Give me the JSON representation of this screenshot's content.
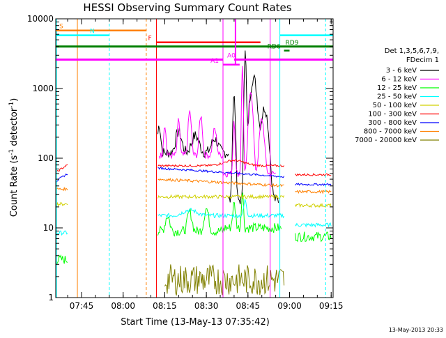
{
  "chart_data": {
    "type": "line",
    "title": "HESSI Observing Summary Count Rates",
    "xlabel": "Start Time (13-May-13 07:35:42)",
    "ylabel_main": "Count Rate (s",
    "ylabel_sup": "-1",
    "ylabel_tail": " detector",
    "ylabel_end": ")",
    "footer_date": "13-May-2013 20:33",
    "y_scale": "log",
    "ylim": [
      1,
      10000
    ],
    "xlim": [
      "07:35:42",
      "09:15:42"
    ],
    "x_ticks": [
      "07:45",
      "08:00",
      "08:15",
      "08:30",
      "08:45",
      "09:00",
      "09:15"
    ],
    "y_ticks": [
      "1",
      "10",
      "100",
      "1000",
      "10000"
    ],
    "legend_header": [
      "Det 1,3,5,6,7,9,",
      "FDecim 1"
    ],
    "legend_placement": "right",
    "series": [
      {
        "name": "3 - 6 keV",
        "color": "#000000"
      },
      {
        "name": "6 - 12 keV",
        "color": "#ff00ff"
      },
      {
        "name": "12 - 25 keV",
        "color": "#00ff00"
      },
      {
        "name": "25 - 50 keV",
        "color": "#00ffff"
      },
      {
        "name": "50 - 100 keV",
        "color": "#d0d000"
      },
      {
        "name": "100 - 300 keV",
        "color": "#ff0000"
      },
      {
        "name": "300 - 800 keV",
        "color": "#0000ff"
      },
      {
        "name": "800 - 7000 keV",
        "color": "#ff8000"
      },
      {
        "name": "7000 - 20000 keV",
        "color": "#808000"
      }
    ],
    "flags": [
      {
        "label": "S",
        "color": "#ff8000"
      },
      {
        "label": "N",
        "color": "#00ffff"
      },
      {
        "label": "F",
        "color": "#ff0000"
      },
      {
        "label": "RD9",
        "color": "#008000"
      },
      {
        "label": "RD6",
        "color": "#008000"
      },
      {
        "label": "A0",
        "color": "#ff00ff"
      },
      {
        "label": "A1",
        "color": "#ff00ff"
      }
    ]
  }
}
